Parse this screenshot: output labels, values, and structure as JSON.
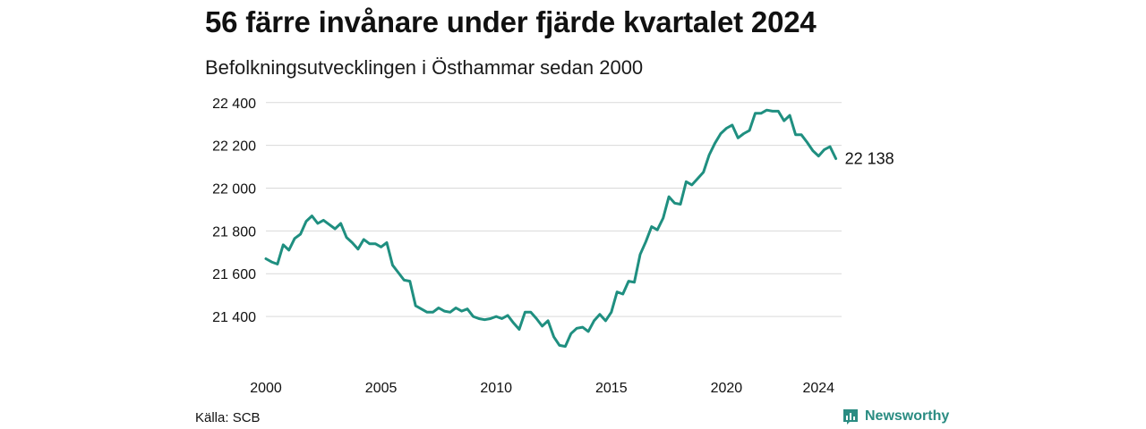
{
  "title": "56 färre invånare under fjärde kvartalet 2024",
  "subtitle": "Befolkningsutvecklingen i Östhammar sedan 2000",
  "source": "Källa: SCB",
  "brand": {
    "name": "Newsworthy",
    "color": "#2a8c82"
  },
  "chart_data": {
    "type": "line",
    "line_color": "#1f8f80",
    "grid": true,
    "ylim": [
      21250,
      22420
    ],
    "xlim": [
      2000,
      2025
    ],
    "y_ticks": [
      21400,
      21600,
      21800,
      22000,
      22200,
      22400
    ],
    "y_tick_labels": [
      "21 400",
      "21 600",
      "21 800",
      "22 000",
      "22 200",
      "22 400"
    ],
    "x_ticks": [
      2000,
      2005,
      2010,
      2015,
      2020,
      2024
    ],
    "x_tick_labels": [
      "2000",
      "2005",
      "2010",
      "2015",
      "2020",
      "2024"
    ],
    "end_label": "22 138",
    "series": [
      {
        "x": [
          2000.0,
          2000.25,
          2000.5,
          2000.75,
          2001.0,
          2001.25,
          2001.5,
          2001.75,
          2002.0,
          2002.25,
          2002.5,
          2002.75,
          2003.0,
          2003.25,
          2003.5,
          2003.75,
          2004.0,
          2004.25,
          2004.5,
          2004.75,
          2005.0,
          2005.25,
          2005.5,
          2005.75,
          2006.0,
          2006.25,
          2006.5,
          2006.75,
          2007.0,
          2007.25,
          2007.5,
          2007.75,
          2008.0,
          2008.25,
          2008.5,
          2008.75,
          2009.0,
          2009.25,
          2009.5,
          2009.75,
          2010.0,
          2010.25,
          2010.5,
          2010.75,
          2011.0,
          2011.25,
          2011.5,
          2011.75,
          2012.0,
          2012.25,
          2012.5,
          2012.75,
          2013.0,
          2013.25,
          2013.5,
          2013.75,
          2014.0,
          2014.25,
          2014.5,
          2014.75,
          2015.0,
          2015.25,
          2015.5,
          2015.75,
          2016.0,
          2016.25,
          2016.5,
          2016.75,
          2017.0,
          2017.25,
          2017.5,
          2017.75,
          2018.0,
          2018.25,
          2018.5,
          2018.75,
          2019.0,
          2019.25,
          2019.5,
          2019.75,
          2020.0,
          2020.25,
          2020.5,
          2020.75,
          2021.0,
          2021.25,
          2021.5,
          2021.75,
          2022.0,
          2022.25,
          2022.5,
          2022.75,
          2023.0,
          2023.25,
          2023.5,
          2023.75,
          2024.0,
          2024.25,
          2024.5,
          2024.75
        ],
        "y": [
          21670,
          21655,
          21645,
          21735,
          21710,
          21765,
          21785,
          21845,
          21870,
          21835,
          21850,
          21830,
          21810,
          21835,
          21770,
          21745,
          21715,
          21760,
          21740,
          21740,
          21725,
          21745,
          21640,
          21605,
          21570,
          21565,
          21450,
          21435,
          21420,
          21420,
          21440,
          21425,
          21420,
          21440,
          21425,
          21435,
          21400,
          21390,
          21385,
          21390,
          21400,
          21390,
          21405,
          21370,
          21340,
          21420,
          21420,
          21390,
          21355,
          21380,
          21305,
          21265,
          21260,
          21320,
          21345,
          21350,
          21330,
          21380,
          21410,
          21380,
          21420,
          21515,
          21505,
          21565,
          21560,
          21690,
          21750,
          21820,
          21805,
          21860,
          21960,
          21930,
          21925,
          22030,
          22015,
          22045,
          22075,
          22155,
          22210,
          22255,
          22280,
          22295,
          22235,
          22255,
          22270,
          22350,
          22350,
          22365,
          22360,
          22360,
          22315,
          22340,
          22250,
          22250,
          22215,
          22175,
          22150,
          22180,
          22194,
          22138
        ]
      }
    ]
  }
}
